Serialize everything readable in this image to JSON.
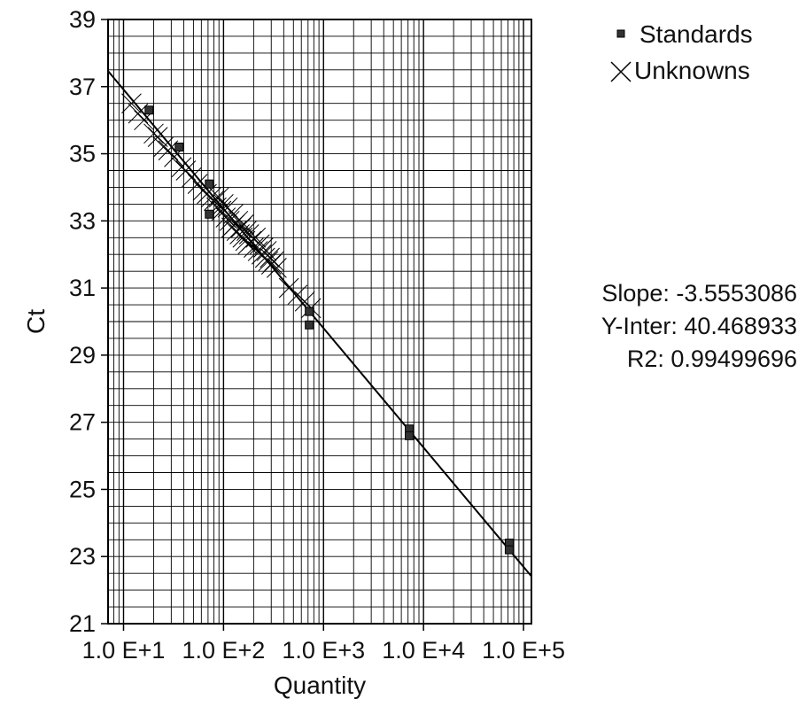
{
  "chart_data": {
    "type": "scatter",
    "xlabel": "Quantity",
    "ylabel": "Ct",
    "x_scale": "log",
    "xlim": [
      7,
      120000
    ],
    "ylim": [
      21,
      39
    ],
    "x_ticks": [
      10,
      100,
      1000,
      10000,
      100000
    ],
    "x_tick_labels": [
      "1.0 E+1",
      "1.0 E+2",
      "1.0 E+3",
      "1.0 E+4",
      "1.0 E+5"
    ],
    "y_ticks": [
      21,
      23,
      25,
      27,
      29,
      31,
      33,
      35,
      37,
      39
    ],
    "grid": true,
    "legend_position": "top-right",
    "series": [
      {
        "name": "Standards",
        "marker": "square",
        "x": [
          18,
          36,
          72,
          72,
          720,
          720,
          7200,
          7200,
          72000,
          72000
        ],
        "y": [
          36.3,
          35.2,
          34.1,
          33.2,
          30.3,
          29.9,
          26.8,
          26.6,
          23.4,
          23.2
        ]
      },
      {
        "name": "Unknowns",
        "marker": "x",
        "x": [
          12,
          14,
          16,
          20,
          22,
          25,
          28,
          32,
          38,
          42,
          48,
          55,
          62,
          68,
          75,
          80,
          85,
          90,
          95,
          100,
          105,
          110,
          115,
          120,
          125,
          130,
          135,
          140,
          145,
          150,
          155,
          160,
          165,
          170,
          175,
          180,
          190,
          200,
          210,
          220,
          230,
          240,
          250,
          260,
          270,
          280,
          290,
          300,
          320,
          340,
          450,
          550,
          650,
          750
        ],
        "y": [
          36.5,
          36.2,
          36.0,
          35.6,
          35.5,
          35.2,
          35.1,
          34.9,
          34.6,
          34.5,
          34.3,
          34.1,
          33.9,
          33.8,
          33.7,
          33.6,
          33.4,
          33.7,
          33.3,
          33.5,
          33.1,
          33.4,
          33.0,
          32.8,
          33.2,
          32.9,
          32.7,
          33.0,
          32.6,
          32.8,
          32.5,
          32.9,
          32.4,
          32.7,
          32.3,
          32.6,
          32.4,
          32.2,
          32.5,
          32.1,
          32.3,
          32.0,
          32.2,
          31.9,
          32.1,
          31.8,
          31.9,
          31.7,
          31.8,
          31.6,
          31.0,
          30.8,
          30.6,
          30.4
        ]
      }
    ],
    "fit_line": {
      "slope": -3.5553086,
      "intercept": 40.468933
    },
    "stats": {
      "slope": "Slope: -3.5553086",
      "intercept": "Y-Inter: 40.468933",
      "r2": "R2: 0.99499696"
    }
  }
}
